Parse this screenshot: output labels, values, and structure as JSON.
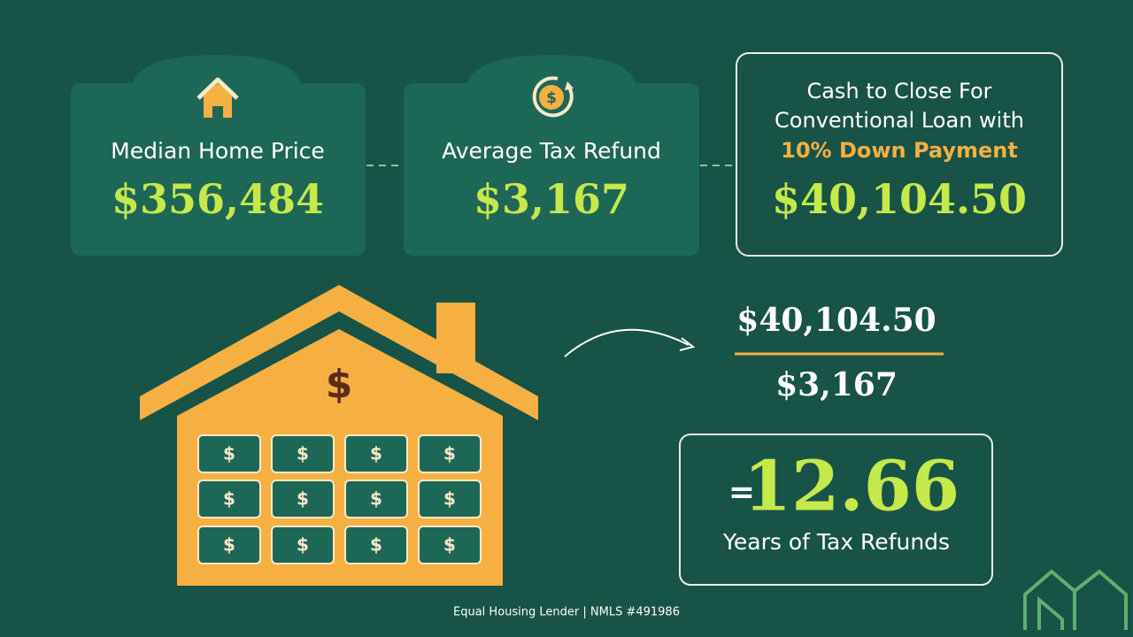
{
  "cards": [
    {
      "label": "Median Home Price",
      "value": "$356,484"
    },
    {
      "label": "Average Tax Refund",
      "value": "$3,167"
    },
    {
      "lines": [
        "Cash to Close For",
        "Conventional Loan with"
      ],
      "highlight": "10% Down Payment",
      "value": "$40,104.50"
    }
  ],
  "refund_icon_symbol": "$",
  "illustration": {
    "symbol": "$"
  },
  "calculation": {
    "numerator": "$40,104.50",
    "denominator": "$3,167",
    "equals": "=",
    "result": "12.66",
    "result_label": "Years of Tax Refunds"
  },
  "footer": "Equal Housing Lender | NMLS #491986"
}
